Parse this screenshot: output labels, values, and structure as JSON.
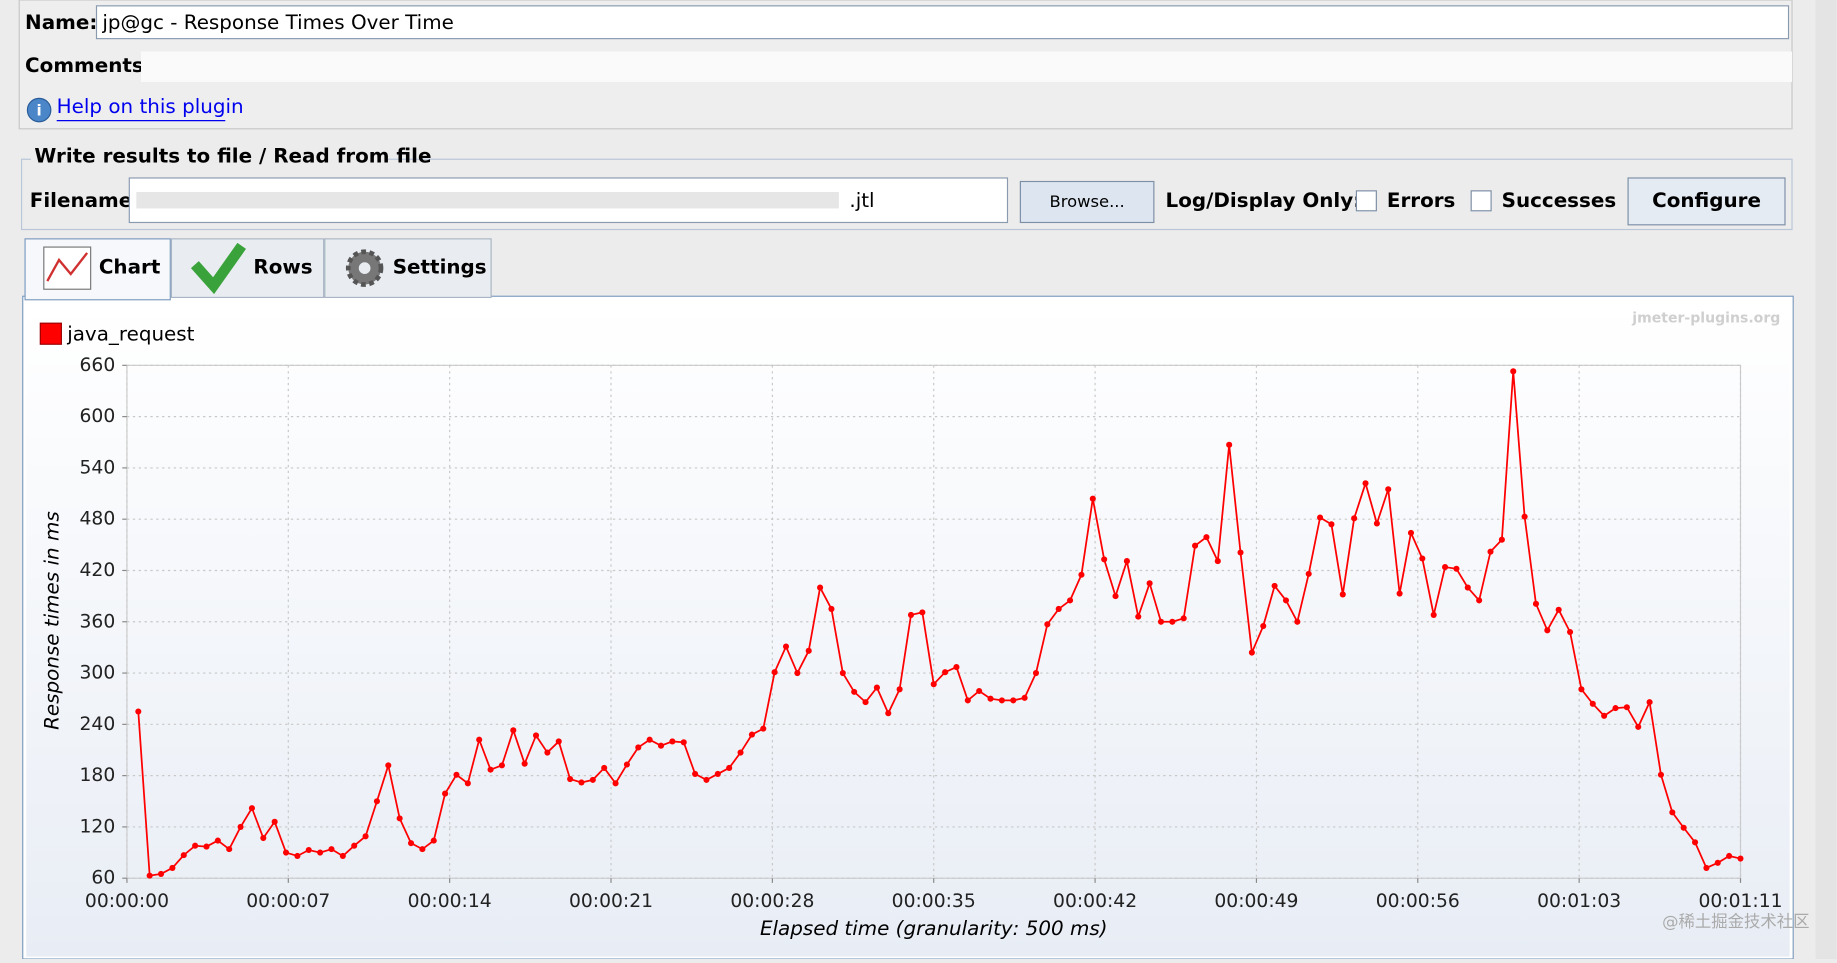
{
  "form": {
    "name_label": "Name:",
    "name_value": "jp@gc - Response Times Over Time",
    "comments_label": "Comments:",
    "help_link": "Help on this plugin",
    "file_group_title": "Write results to file / Read from file",
    "filename_label": "Filename",
    "filename_value": ".jtl",
    "browse_button": "Browse...",
    "log_display_label": "Log/Display Only:",
    "errors_checkbox": "Errors",
    "successes_checkbox": "Successes",
    "configure_button": "Configure"
  },
  "tabs": [
    "Chart",
    "Rows",
    "Settings"
  ],
  "chart_watermark": "jmeter-plugins.org",
  "corner_watermark": "@稀土掘金技术社区",
  "chart_data": {
    "type": "line",
    "x_label": "Elapsed time (granularity: 500 ms)",
    "y_label": "Response times in ms",
    "x": [
      0.5,
      1,
      1.5,
      2,
      2.5,
      3,
      3.5,
      4,
      4.5,
      5,
      5.5,
      6,
      6.5,
      7,
      7.5,
      8,
      8.5,
      9,
      9.5,
      10,
      10.5,
      11,
      11.5,
      12,
      12.5,
      13,
      13.5,
      14,
      14.5,
      15,
      15.5,
      16,
      16.5,
      17,
      17.5,
      18,
      18.5,
      19,
      19.5,
      20,
      20.5,
      21,
      21.5,
      22,
      22.5,
      23,
      23.5,
      24,
      24.5,
      25,
      25.5,
      26,
      26.5,
      27,
      27.5,
      28,
      28.5,
      29,
      29.5,
      30,
      30.5,
      31,
      31.5,
      32,
      32.5,
      33,
      33.5,
      34,
      34.5,
      35,
      35.5,
      36,
      36.5,
      37,
      37.5,
      38,
      38.5,
      39,
      39.5,
      40,
      40.5,
      41,
      41.5,
      42,
      42.5,
      43,
      43.5,
      44,
      44.5,
      45,
      45.5,
      46,
      46.5,
      47,
      47.5,
      48,
      48.5,
      49,
      49.5,
      50,
      50.5,
      51,
      51.5,
      52,
      52.5,
      53,
      53.5,
      54,
      54.5,
      55,
      55.5,
      56,
      56.5,
      57,
      57.5,
      58,
      58.5,
      59,
      59.5,
      60,
      60.5,
      61,
      61.5,
      62,
      62.5,
      63,
      63.5,
      64,
      64.5,
      65,
      65.5,
      66,
      66.5,
      67,
      67.5,
      68,
      68.5,
      69,
      69.5,
      70,
      70.5,
      71
    ],
    "series": [
      {
        "name": "java_request",
        "color": "#ff0000",
        "values": [
          255,
          63,
          65,
          72,
          87,
          98,
          97,
          104,
          94,
          120,
          142,
          107,
          126,
          90,
          86,
          93,
          90,
          94,
          86,
          98,
          109,
          150,
          192,
          130,
          101,
          94,
          104,
          159,
          181,
          171,
          222,
          187,
          192,
          233,
          194,
          227,
          207,
          220,
          176,
          172,
          175,
          189,
          171,
          193,
          213,
          222,
          215,
          220,
          219,
          182,
          175,
          182,
          189,
          207,
          228,
          235,
          301,
          331,
          300,
          326,
          400,
          375,
          300,
          278,
          266,
          283,
          253,
          281,
          368,
          371,
          287,
          301,
          307,
          268,
          279,
          270,
          268,
          268,
          271,
          300,
          357,
          375,
          385,
          415,
          504,
          433,
          390,
          431,
          366,
          405,
          360,
          360,
          364,
          449,
          459,
          431,
          567,
          441,
          324,
          355,
          402,
          385,
          360,
          416,
          482,
          474,
          392,
          481,
          522,
          475,
          515,
          393,
          464,
          434,
          368,
          424,
          422,
          400,
          385,
          442,
          456,
          653,
          483,
          381,
          350,
          374,
          348,
          281,
          264,
          250,
          259,
          260,
          237,
          266,
          181,
          137,
          119,
          102,
          72,
          78,
          86,
          83
        ]
      }
    ],
    "xlim": [
      0,
      71
    ],
    "xticks": [
      {
        "value": 0,
        "label": "00:00:00"
      },
      {
        "value": 7.1,
        "label": "00:00:07"
      },
      {
        "value": 14.2,
        "label": "00:00:14"
      },
      {
        "value": 21.3,
        "label": "00:00:21"
      },
      {
        "value": 28.4,
        "label": "00:00:28"
      },
      {
        "value": 35.5,
        "label": "00:00:35"
      },
      {
        "value": 42.6,
        "label": "00:00:42"
      },
      {
        "value": 49.7,
        "label": "00:00:49"
      },
      {
        "value": 56.8,
        "label": "00:00:56"
      },
      {
        "value": 63.9,
        "label": "00:01:03"
      },
      {
        "value": 71,
        "label": "00:01:11"
      }
    ],
    "ylim": [
      60,
      660
    ],
    "yticks": [
      60,
      120,
      180,
      240,
      300,
      360,
      420,
      480,
      540,
      600,
      660
    ],
    "grid": true,
    "legend": "top-left"
  }
}
